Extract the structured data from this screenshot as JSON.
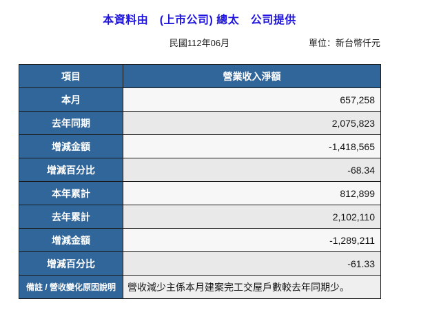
{
  "header": {
    "title": "本資料由　(上市公司) 總太　公司提供",
    "period": "民國112年06月",
    "unit_label": "單位：新台幣仟元"
  },
  "table": {
    "columns": {
      "item": "項目",
      "value": "營業收入淨額"
    },
    "rows": [
      {
        "label": "本月",
        "value": "657,258"
      },
      {
        "label": "去年同期",
        "value": "2,075,823"
      },
      {
        "label": "增減金額",
        "value": "-1,418,565"
      },
      {
        "label": "增減百分比",
        "value": "-68.34"
      },
      {
        "label": "本年累計",
        "value": "812,899"
      },
      {
        "label": "去年累計",
        "value": "2,102,110"
      },
      {
        "label": "增減金額",
        "value": "-1,289,211"
      },
      {
        "label": "增減百分比",
        "value": "-61.33"
      }
    ],
    "note_row": {
      "label": "備註 / 營收變化原因說明",
      "value": "營收減少主係本月建案完工交屋戶數較去年同期少。"
    }
  },
  "colors": {
    "label_blue": "#31669B",
    "title_blue": "#1E14DD",
    "row_light": "#f7f7f7",
    "row_alt": "#e9e9e9"
  }
}
